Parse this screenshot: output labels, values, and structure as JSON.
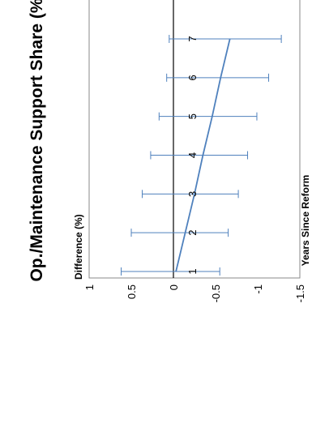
{
  "chart_data": {
    "type": "line",
    "title": "Op./Maintenance Support Share (%)",
    "ylabel": "Difference (%)",
    "xlabel": "Years Since Reform",
    "x": [
      1,
      2,
      3,
      4,
      5,
      6,
      7
    ],
    "x_tick_labels": [
      "1",
      "2",
      "3",
      "4",
      "5",
      "6",
      "7"
    ],
    "ylim": [
      -1.5,
      1
    ],
    "y_ticks": [
      -1.5,
      -1,
      -0.5,
      0,
      0.5,
      1
    ],
    "y_tick_labels": [
      "-1.5",
      "-1",
      "-0.5",
      "0",
      "0.5",
      "1"
    ],
    "series": [
      {
        "values": [
          -0.03,
          -0.14,
          -0.25,
          -0.35,
          -0.46,
          -0.56,
          -0.67
        ],
        "ci_lower": [
          -0.55,
          -0.65,
          -0.77,
          -0.88,
          -0.99,
          -1.13,
          -1.28
        ],
        "ci_upper": [
          0.62,
          0.5,
          0.37,
          0.27,
          0.17,
          0.08,
          0.05
        ],
        "color": "#4f81bd"
      }
    ],
    "grid": false,
    "zero_line": true
  }
}
